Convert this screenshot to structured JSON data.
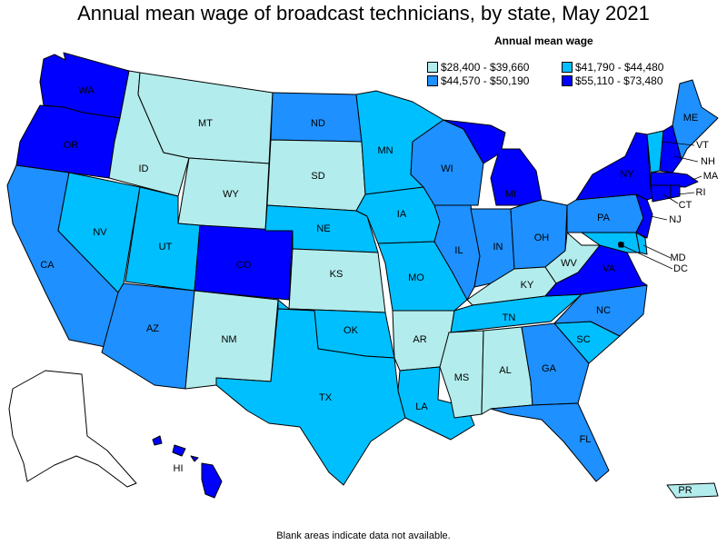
{
  "title": "Annual mean wage of broadcast technicians, by state, May 2021",
  "legend": {
    "title": "Annual mean wage",
    "bins": [
      {
        "label": "$28,400 - $39,660",
        "color": "#b3ecec"
      },
      {
        "label": "$41,790 - $44,480",
        "color": "#00bfff"
      },
      {
        "label": "$44,570 - $50,190",
        "color": "#1e90ff"
      },
      {
        "label": "$55,110 - $73,480",
        "color": "#0000ff"
      }
    ]
  },
  "colors": {
    "border": "#000000",
    "no_data": "#ffffff"
  },
  "states": {
    "WA": {
      "label": "WA",
      "bin": 3
    },
    "OR": {
      "label": "OR",
      "bin": 3
    },
    "CA": {
      "label": "CA",
      "bin": 2
    },
    "ID": {
      "label": "ID",
      "bin": 0
    },
    "NV": {
      "label": "NV",
      "bin": 1
    },
    "MT": {
      "label": "MT",
      "bin": 0
    },
    "WY": {
      "label": "WY",
      "bin": 0
    },
    "UT": {
      "label": "UT",
      "bin": 1
    },
    "AZ": {
      "label": "AZ",
      "bin": 2
    },
    "CO": {
      "label": "CO",
      "bin": 3
    },
    "NM": {
      "label": "NM",
      "bin": 0
    },
    "ND": {
      "label": "ND",
      "bin": 2
    },
    "SD": {
      "label": "SD",
      "bin": 0
    },
    "NE": {
      "label": "NE",
      "bin": 1
    },
    "KS": {
      "label": "KS",
      "bin": 0
    },
    "OK": {
      "label": "OK",
      "bin": 1
    },
    "TX": {
      "label": "TX",
      "bin": 1
    },
    "MN": {
      "label": "MN",
      "bin": 1
    },
    "IA": {
      "label": "IA",
      "bin": 1
    },
    "MO": {
      "label": "MO",
      "bin": 1
    },
    "AR": {
      "label": "AR",
      "bin": 0
    },
    "LA": {
      "label": "LA",
      "bin": 1
    },
    "WI": {
      "label": "WI",
      "bin": 2
    },
    "IL": {
      "label": "IL",
      "bin": 2
    },
    "MI": {
      "label": "MI",
      "bin": 3
    },
    "IN": {
      "label": "IN",
      "bin": 2
    },
    "OH": {
      "label": "OH",
      "bin": 2
    },
    "KY": {
      "label": "KY",
      "bin": 0
    },
    "TN": {
      "label": "TN",
      "bin": 1
    },
    "MS": {
      "label": "MS",
      "bin": 0
    },
    "AL": {
      "label": "AL",
      "bin": 0
    },
    "GA": {
      "label": "GA",
      "bin": 2
    },
    "FL": {
      "label": "FL",
      "bin": 2
    },
    "SC": {
      "label": "SC",
      "bin": 1
    },
    "NC": {
      "label": "NC",
      "bin": 2
    },
    "VA": {
      "label": "VA",
      "bin": 3
    },
    "WV": {
      "label": "WV",
      "bin": 0
    },
    "PA": {
      "label": "PA",
      "bin": 2
    },
    "NY": {
      "label": "NY",
      "bin": 3
    },
    "ME": {
      "label": "ME",
      "bin": 2
    },
    "VT": {
      "label": "VT",
      "bin": 1
    },
    "NH": {
      "label": "NH",
      "bin": 3
    },
    "MA": {
      "label": "MA",
      "bin": 3
    },
    "RI": {
      "label": "RI",
      "bin": 3
    },
    "CT": {
      "label": "CT",
      "bin": 3
    },
    "NJ": {
      "label": "NJ",
      "bin": 3
    },
    "DE": {
      "label": "",
      "bin": 1
    },
    "MD": {
      "label": "MD",
      "bin": 1
    },
    "DC": {
      "label": "DC",
      "bin": 3
    },
    "AK": {
      "label": "",
      "bin": null
    },
    "HI": {
      "label": "HI",
      "bin": 3
    },
    "PR": {
      "label": "PR",
      "bin": 0
    }
  },
  "footnote": "Blank areas indicate data not available."
}
